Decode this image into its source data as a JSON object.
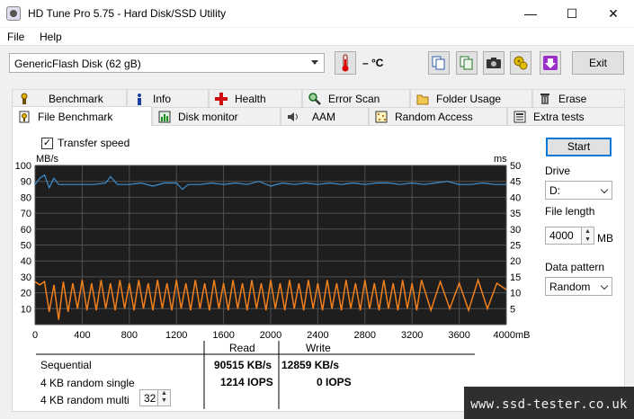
{
  "window": {
    "title": "HD Tune Pro 5.75 - Hard Disk/SSD Utility",
    "minimize_glyph": "—",
    "maximize_glyph": "☐",
    "close_glyph": "✕"
  },
  "menu": {
    "file": "File",
    "help": "Help"
  },
  "toolbar": {
    "drive_selected": "GenericFlash Disk (62 gB)",
    "temperature": "– °C",
    "exit_label": "Exit",
    "icons": [
      "thermometer-icon",
      "copy-text-icon",
      "copy-screenshot-icon",
      "camera-icon",
      "options-icon",
      "save-download-icon"
    ]
  },
  "tabs_row1": [
    "Benchmark",
    "Info",
    "Health",
    "Error Scan",
    "Folder Usage",
    "Erase"
  ],
  "tabs_row2": [
    "File Benchmark",
    "Disk monitor",
    "AAM",
    "Random Access",
    "Extra tests"
  ],
  "active_tab": "File Benchmark",
  "transfer_speed_label": "Transfer speed",
  "transfer_speed_checked": true,
  "controls": {
    "start_label": "Start",
    "drive_label": "Drive",
    "drive_value": "D:",
    "file_length_label": "File length",
    "file_length_value": "4000",
    "file_length_unit": "MB",
    "data_pattern_label": "Data pattern",
    "data_pattern_value": "Random"
  },
  "results": {
    "read_header": "Read",
    "write_header": "Write",
    "rows": [
      {
        "label": "Sequential",
        "read": "90515 KB/s",
        "write": "12859 KB/s"
      },
      {
        "label": "4 KB random single",
        "read": "1214 IOPS",
        "write": "0 IOPS"
      },
      {
        "label": "4 KB random multi",
        "read": "",
        "write": ""
      }
    ],
    "multi_queue_value": "32"
  },
  "watermark": "www.ssd-tester.co.uk",
  "colors": {
    "read_line": "#3c8fd0",
    "write_line": "#f07f1c",
    "chart_bg": "#1e1e1e",
    "grid": "#505050",
    "focus": "#0078d7"
  },
  "chart_data": {
    "type": "line",
    "title": "",
    "xlabel": "",
    "x_unit": "MB",
    "ylabel_left": "MB/s",
    "ylabel_right": "ms",
    "x_ticks": [
      "0",
      "400",
      "800",
      "1200",
      "1600",
      "2000",
      "2400",
      "2800",
      "3200",
      "3600",
      "4000mB"
    ],
    "y_left_ticks": [
      "10",
      "20",
      "30",
      "40",
      "50",
      "60",
      "70",
      "80",
      "90",
      "100"
    ],
    "y_right_ticks": [
      "5",
      "10",
      "15",
      "20",
      "25",
      "30",
      "35",
      "40",
      "45",
      "50"
    ],
    "xlim": [
      0,
      4000
    ],
    "ylim": [
      0,
      100
    ],
    "y2lim": [
      0,
      50
    ],
    "grid": true,
    "series": [
      {
        "axis": "left",
        "x": [
          0,
          40,
          80,
          120,
          160,
          200,
          300,
          400,
          500,
          600,
          640,
          700,
          800,
          900,
          1000,
          1100,
          1200,
          1250,
          1300,
          1400,
          1500,
          1600,
          1700,
          1800,
          1900,
          2000,
          2100,
          2200,
          2300,
          2400,
          2500,
          2600,
          2700,
          2800,
          2900,
          3000,
          3100,
          3200,
          3300,
          3400,
          3500,
          3600,
          3700,
          3800,
          3900,
          4000
        ],
        "values": [
          88,
          92,
          94,
          86,
          92,
          88,
          88,
          88,
          88,
          89,
          93,
          88,
          88,
          89,
          87,
          89,
          89,
          85,
          88,
          88,
          89,
          88,
          89,
          88,
          90,
          87,
          89,
          88,
          89,
          88,
          89,
          88,
          89,
          88,
          89,
          89,
          88,
          89,
          88,
          89,
          90,
          88,
          88,
          89,
          88,
          88
        ]
      },
      {
        "axis": "left",
        "x": [
          0,
          40,
          80,
          120,
          160,
          200,
          240,
          280,
          320,
          360,
          400,
          440,
          480,
          520,
          560,
          600,
          640,
          680,
          720,
          760,
          800,
          840,
          880,
          920,
          960,
          1000,
          1040,
          1080,
          1120,
          1160,
          1200,
          1240,
          1280,
          1320,
          1360,
          1400,
          1440,
          1480,
          1520,
          1560,
          1600,
          1640,
          1680,
          1720,
          1760,
          1800,
          1840,
          1880,
          1920,
          1960,
          2000,
          2040,
          2080,
          2120,
          2160,
          2200,
          2240,
          2280,
          2320,
          2360,
          2400,
          2440,
          2480,
          2520,
          2560,
          2600,
          2640,
          2680,
          2720,
          2760,
          2800,
          2840,
          2880,
          2920,
          2960,
          3000,
          3040,
          3080,
          3120,
          3160,
          3200,
          3240,
          3280,
          3360,
          3440,
          3520,
          3600,
          3680,
          3760,
          3840,
          3920,
          4000
        ],
        "values": [
          27,
          25,
          27,
          8,
          25,
          3,
          27,
          8,
          26,
          10,
          28,
          9,
          26,
          9,
          28,
          10,
          26,
          9,
          28,
          10,
          26,
          9,
          28,
          10,
          26,
          9,
          28,
          10,
          26,
          9,
          28,
          10,
          26,
          9,
          28,
          10,
          26,
          9,
          28,
          10,
          26,
          9,
          28,
          10,
          26,
          9,
          28,
          10,
          26,
          9,
          28,
          10,
          26,
          9,
          28,
          10,
          26,
          9,
          28,
          10,
          26,
          9,
          28,
          10,
          26,
          9,
          28,
          10,
          26,
          9,
          28,
          10,
          26,
          9,
          28,
          10,
          26,
          9,
          28,
          10,
          26,
          9,
          28,
          9,
          27,
          10,
          26,
          9,
          28,
          10,
          26,
          22
        ]
      }
    ]
  }
}
